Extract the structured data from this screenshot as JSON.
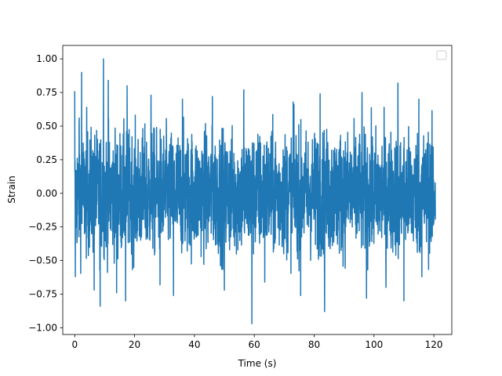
{
  "chart_data": {
    "type": "line",
    "title": "",
    "xlabel": "Time (s)",
    "ylabel": "Strain",
    "xlim": [
      -4,
      126
    ],
    "ylim": [
      -1.05,
      1.1
    ],
    "x_ticks": [
      0,
      20,
      40,
      60,
      80,
      100,
      120
    ],
    "x_tick_labels": [
      "0",
      "20",
      "40",
      "60",
      "80",
      "100",
      "120"
    ],
    "y_ticks": [
      -1.0,
      -0.75,
      -0.5,
      -0.25,
      0.0,
      0.25,
      0.5,
      0.75,
      1.0
    ],
    "y_tick_labels": [
      "−1.00",
      "−0.75",
      "−0.50",
      "−0.25",
      "0.00",
      "0.25",
      "0.50",
      "0.75",
      "1.00"
    ],
    "grid": false,
    "legend": {
      "placement": "top-right",
      "entries": []
    },
    "series": [
      {
        "color": "#1f77b4",
        "x_range": [
          0,
          120.5
        ],
        "typical_envelope": [
          -0.5,
          0.5
        ],
        "extremes": [
          {
            "x": 0.0,
            "y": 0.76
          },
          {
            "x": 0.2,
            "y": -0.62
          },
          {
            "x": 1.5,
            "y": 0.56
          },
          {
            "x": 2.3,
            "y": 0.9
          },
          {
            "x": 4.0,
            "y": 0.64
          },
          {
            "x": 6.5,
            "y": -0.72
          },
          {
            "x": 8.5,
            "y": -0.84
          },
          {
            "x": 9.6,
            "y": 1.0
          },
          {
            "x": 11.2,
            "y": 0.84
          },
          {
            "x": 14.0,
            "y": -0.74
          },
          {
            "x": 17.0,
            "y": -0.8
          },
          {
            "x": 17.5,
            "y": 0.8
          },
          {
            "x": 25.5,
            "y": 0.73
          },
          {
            "x": 28.5,
            "y": -0.68
          },
          {
            "x": 33.0,
            "y": -0.76
          },
          {
            "x": 36.0,
            "y": 0.7
          },
          {
            "x": 46.0,
            "y": 0.72
          },
          {
            "x": 50.0,
            "y": -0.72
          },
          {
            "x": 56.5,
            "y": 0.77
          },
          {
            "x": 59.2,
            "y": -0.97
          },
          {
            "x": 63.5,
            "y": -0.66
          },
          {
            "x": 73.0,
            "y": 0.68
          },
          {
            "x": 75.5,
            "y": -0.76
          },
          {
            "x": 82.0,
            "y": 0.74
          },
          {
            "x": 83.5,
            "y": -0.88
          },
          {
            "x": 96.0,
            "y": 0.75
          },
          {
            "x": 97.5,
            "y": -0.78
          },
          {
            "x": 104.0,
            "y": -0.7
          },
          {
            "x": 108.0,
            "y": 0.82
          },
          {
            "x": 110.0,
            "y": -0.8
          },
          {
            "x": 115.0,
            "y": 0.7
          },
          {
            "x": 116.0,
            "y": -0.62
          }
        ]
      }
    ]
  }
}
